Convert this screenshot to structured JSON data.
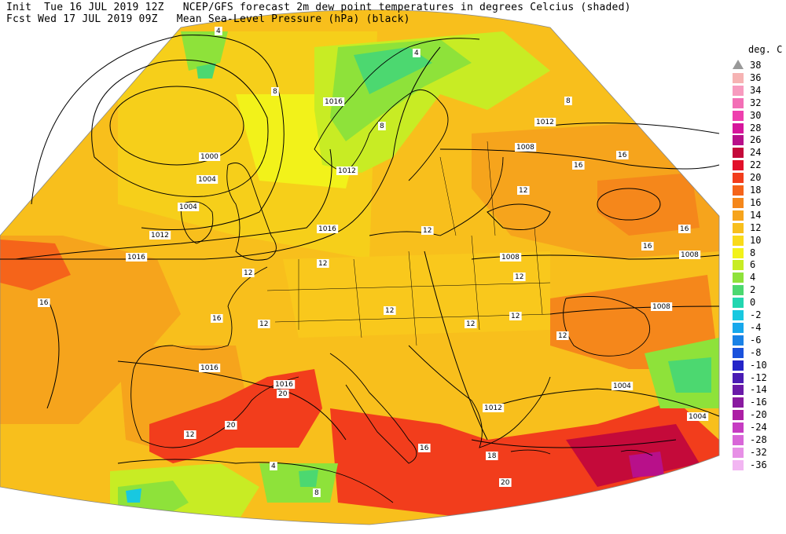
{
  "header": {
    "line1": "Init  Tue 16 JUL 2019 12Z   NCEP/GFS forecast 2m dew point temperatures in degrees Celcius (shaded)",
    "line2": "Fcst Wed 17 JUL 2019 09Z   Mean Sea-Level Pressure (hPa) (black)"
  },
  "legend": {
    "unit": "deg. C",
    "levels": [
      {
        "label": "38",
        "color": "#b0b0b0",
        "tri": true
      },
      {
        "label": "36",
        "color": "#f6b3b3"
      },
      {
        "label": "34",
        "color": "#f79bbf"
      },
      {
        "label": "32",
        "color": "#f36fb6"
      },
      {
        "label": "30",
        "color": "#ee3fae"
      },
      {
        "label": "28",
        "color": "#d6169c"
      },
      {
        "label": "26",
        "color": "#b8108a"
      },
      {
        "label": "24",
        "color": "#c40a3a"
      },
      {
        "label": "22",
        "color": "#e2102a"
      },
      {
        "label": "20",
        "color": "#f23d1c"
      },
      {
        "label": "18",
        "color": "#f5641a"
      },
      {
        "label": "16",
        "color": "#f5871b"
      },
      {
        "label": "14",
        "color": "#f6a41c"
      },
      {
        "label": "12",
        "color": "#f8bf1c"
      },
      {
        "label": "10",
        "color": "#f9da1a"
      },
      {
        "label": "8",
        "color": "#f2f21a"
      },
      {
        "label": "6",
        "color": "#c8ec24"
      },
      {
        "label": "4",
        "color": "#8ee23a"
      },
      {
        "label": "2",
        "color": "#4cd870"
      },
      {
        "label": "0",
        "color": "#22d6b0"
      },
      {
        "label": "-2",
        "color": "#18c8e0"
      },
      {
        "label": "-4",
        "color": "#17a8ec"
      },
      {
        "label": "-6",
        "color": "#1a82e6"
      },
      {
        "label": "-8",
        "color": "#1a52dc"
      },
      {
        "label": "-10",
        "color": "#2424c8"
      },
      {
        "label": "-12",
        "color": "#4a1cb4"
      },
      {
        "label": "-14",
        "color": "#6a1aa8"
      },
      {
        "label": "-16",
        "color": "#8a1aa0"
      },
      {
        "label": "-20",
        "color": "#ac1fa4"
      },
      {
        "label": "-24",
        "color": "#c63cc2"
      },
      {
        "label": "-28",
        "color": "#d866d8"
      },
      {
        "label": "-32",
        "color": "#e790e6"
      },
      {
        "label": "-36",
        "color": "#f2b6f2"
      }
    ]
  },
  "map": {
    "isobar_labels": [
      "1016",
      "1012",
      "1008",
      "1000",
      "1004",
      "1004",
      "1012",
      "1016",
      "1016",
      "1016",
      "1008",
      "1012",
      "1008",
      "1008",
      "1004",
      "1004",
      "1012",
      "1016"
    ],
    "dewpoint_labels": [
      "4",
      "4",
      "8",
      "8",
      "8",
      "12",
      "12",
      "16",
      "16",
      "12",
      "12",
      "12",
      "16",
      "16",
      "12",
      "12",
      "12",
      "12",
      "12",
      "16",
      "16",
      "20",
      "20",
      "20",
      "18",
      "16",
      "4",
      "8",
      "12"
    ]
  }
}
